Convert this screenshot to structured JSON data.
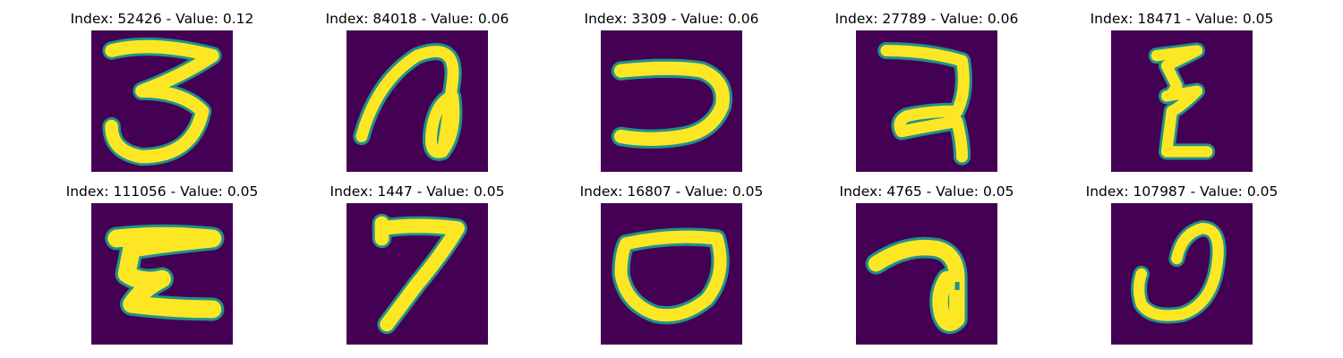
{
  "colors": {
    "background": "#440154",
    "mid": "#21918c",
    "stroke": "#fde725"
  },
  "panels": [
    {
      "title": "Index: 52426 - Value: 0.12",
      "glyph": "digit-three"
    },
    {
      "title": "Index: 84018 - Value: 0.06",
      "glyph": "looped-stroke"
    },
    {
      "title": "Index: 3309 - Value: 0.06",
      "glyph": "u-shape"
    },
    {
      "title": "Index: 27789 - Value: 0.06",
      "glyph": "hook-shape"
    },
    {
      "title": "Index: 18471 - Value: 0.05",
      "glyph": "zigzag"
    },
    {
      "title": "Index: 111056 - Value: 0.05",
      "glyph": "z-shape"
    },
    {
      "title": "Index: 1447 - Value: 0.05",
      "glyph": "digit-seven"
    },
    {
      "title": "Index: 16807 - Value: 0.05",
      "glyph": "oval"
    },
    {
      "title": "Index: 4765 - Value: 0.05",
      "glyph": "curl-shape"
    },
    {
      "title": "Index: 107987 - Value: 0.05",
      "glyph": "spiral"
    }
  ]
}
